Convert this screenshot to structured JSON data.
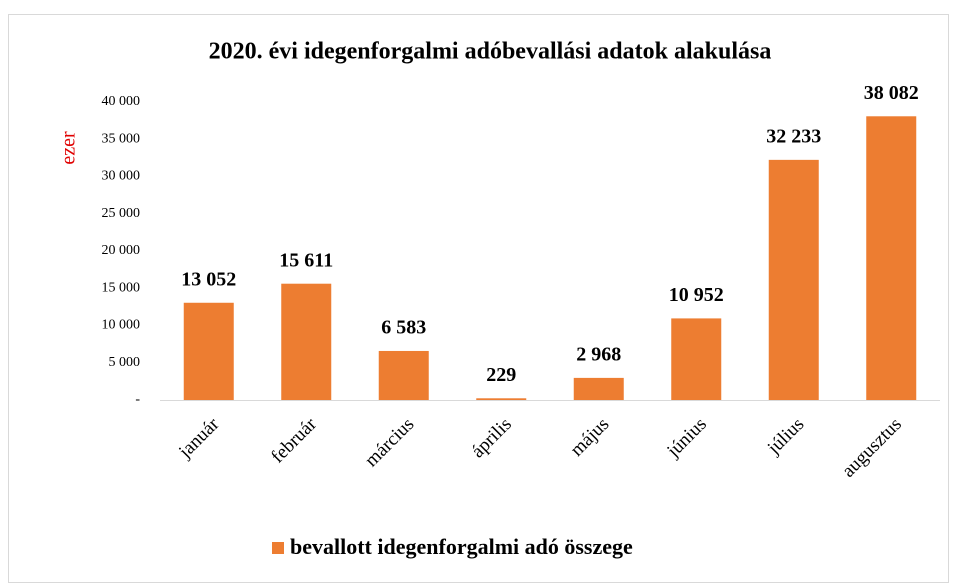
{
  "chart_data": {
    "type": "bar",
    "title": "2020. évi idegenforgalmi adóbevallási adatok alakulása",
    "y_label": "ezer",
    "categories": [
      "január",
      "február",
      "március",
      "április",
      "május",
      "június",
      "július",
      "augusztus"
    ],
    "series": [
      {
        "name": "bevallott idegenforgalmi adó összege",
        "color": "#ed7d31",
        "values": [
          13052,
          15611,
          6583,
          229,
          2968,
          10952,
          32233,
          38082
        ],
        "value_labels": [
          "13 052",
          "15 611",
          "6 583",
          "229",
          "2 968",
          "10 952",
          "32 233",
          "38 082"
        ]
      }
    ],
    "ylim": [
      0,
      40000
    ],
    "yticks": [
      {
        "value": 0,
        "label": "-"
      },
      {
        "value": 5000,
        "label": "5 000"
      },
      {
        "value": 10000,
        "label": "10 000"
      },
      {
        "value": 15000,
        "label": "15 000"
      },
      {
        "value": 20000,
        "label": "20 000"
      },
      {
        "value": 25000,
        "label": "25 000"
      },
      {
        "value": 30000,
        "label": "30 000"
      },
      {
        "value": 35000,
        "label": "35 000"
      },
      {
        "value": 40000,
        "label": "40 000"
      }
    ],
    "grid": false,
    "legend": "bottom"
  }
}
